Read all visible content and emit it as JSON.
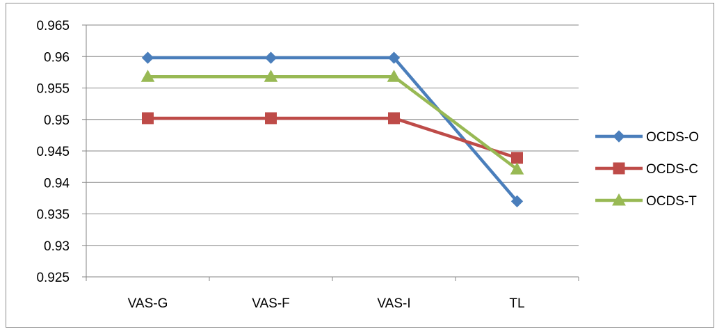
{
  "chart_data": {
    "type": "line",
    "categories": [
      "VAS-G",
      "VAS-F",
      "VAS-I",
      "TL"
    ],
    "ylim": [
      0.925,
      0.965
    ],
    "yticks": [
      "0.965",
      "0.96",
      "0.955",
      "0.95",
      "0.945",
      "0.94",
      "0.935",
      "0.93",
      "0.925"
    ],
    "grid": true,
    "legend_position": "right",
    "series": [
      {
        "name": "OCDS-O",
        "values": [
          0.9598,
          0.9598,
          0.9598,
          0.937
        ],
        "color": "#4a7ebb",
        "marker": "diamond"
      },
      {
        "name": "OCDS-C",
        "values": [
          0.9502,
          0.9502,
          0.9502,
          0.9439
        ],
        "color": "#be4b48",
        "marker": "square"
      },
      {
        "name": "OCDS-T",
        "values": [
          0.9568,
          0.9568,
          0.9568,
          0.9421
        ],
        "color": "#98b954",
        "marker": "triangle"
      }
    ]
  }
}
